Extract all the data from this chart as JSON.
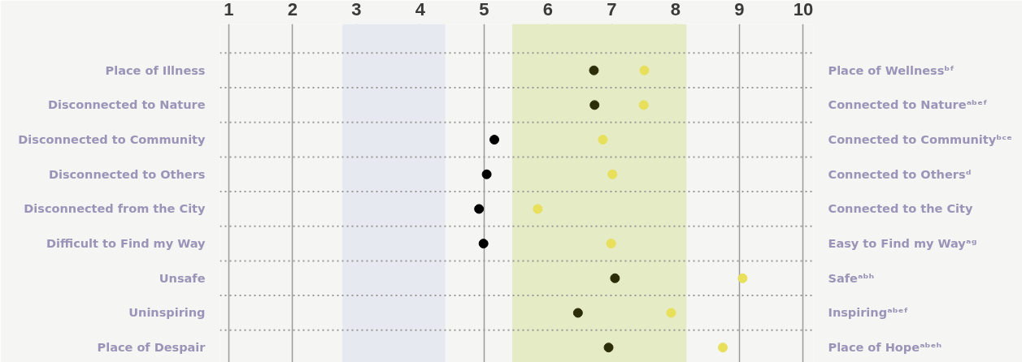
{
  "chart_data": {
    "type": "scatter",
    "orientation": "horizontal",
    "categories": [
      "Place of Illness",
      "Disconnected to Nature",
      "Disconnected to Community",
      "Disconnected to Others",
      "Disconnected from the City",
      "Difficult to Find my Way",
      "Unsafe",
      "Uninspiring",
      "Place of Despair"
    ],
    "y2_categories": [
      "Place of Wellnessᵇᶠ",
      "Connected to Natureᵃᵇᵉᶠ",
      "Connected to Communityᵇᶜᵉ",
      "Connected to Othersᵈ",
      "Connected to the City",
      "Easy to Find my Wayᵃᵍ",
      "Safeᵃᵇʰ",
      "Inspiringᵃᵇᵉᶠ",
      "Place of Hopeᵃᵇᵉʰ"
    ],
    "series": [
      {
        "colors": [
          "#2b2e08",
          "#2b2e08",
          "#000000",
          "#000000",
          "#000000",
          "#000000",
          "#2b2e08",
          "#2b2e08",
          "#2b2e08"
        ],
        "values": [
          6.72,
          6.73,
          5.16,
          5.04,
          4.92,
          4.99,
          7.05,
          6.47,
          6.95
        ]
      },
      {
        "color": "#e8df5a",
        "values": [
          7.51,
          7.5,
          6.86,
          7.01,
          5.84,
          6.99,
          9.05,
          7.93,
          8.74
        ]
      }
    ],
    "xlim": [
      0.86,
      10.16
    ],
    "xticks": [
      1,
      2,
      3,
      4,
      5,
      6,
      7,
      8,
      9,
      10
    ],
    "bands": [
      {
        "axis": "x",
        "from": 2.78,
        "to": 4.39,
        "color": "#e6e9ef"
      },
      {
        "axis": "x",
        "from": 5.44,
        "to": 8.17,
        "color": "#e5ebc4"
      }
    ],
    "grid": "x",
    "marker": "circle"
  }
}
